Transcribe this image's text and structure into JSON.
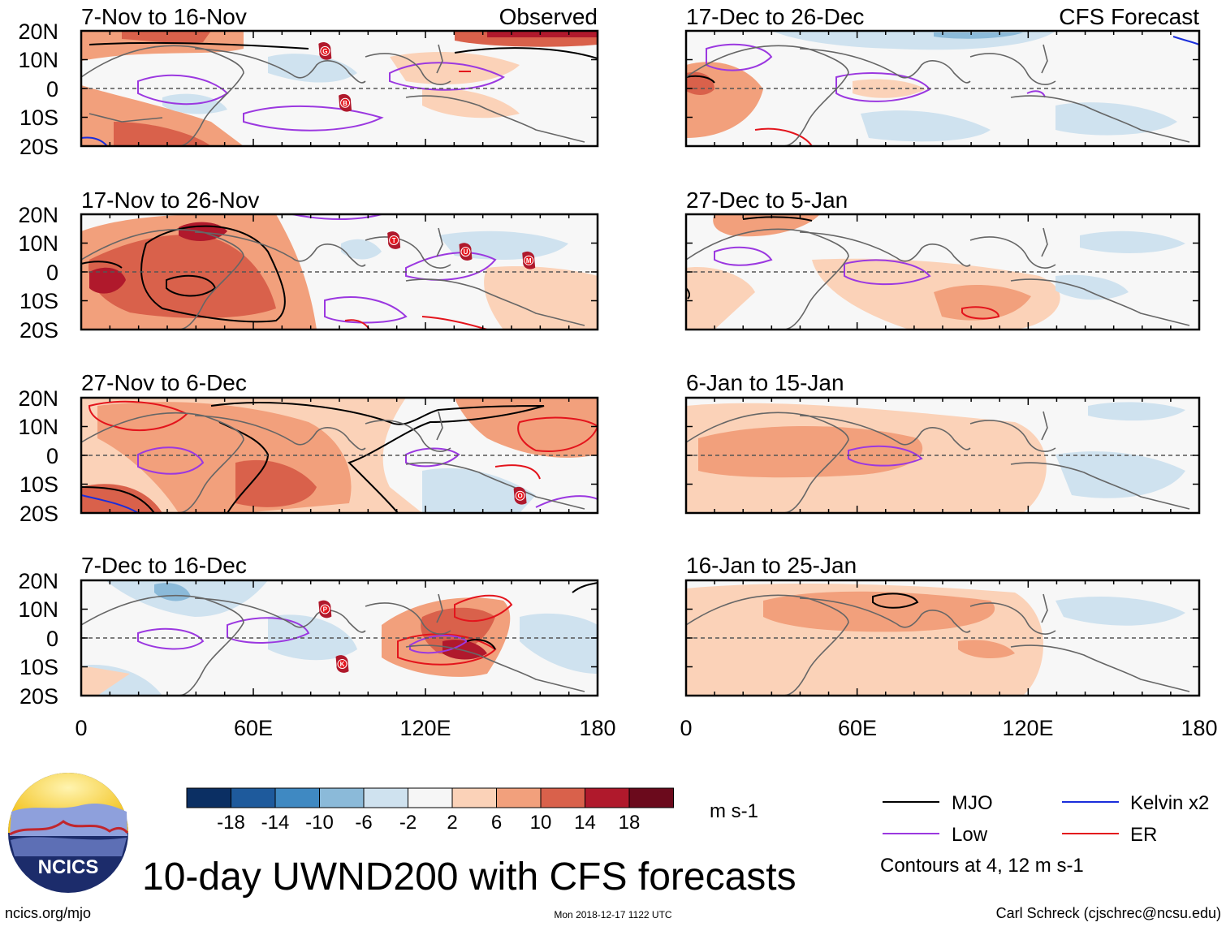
{
  "title": "10-day UWND200 with CFS forecasts",
  "footer": {
    "left": "ncics.org/mjo",
    "center": "Mon 2018-12-17 1122 UTC",
    "right": "Carl Schreck (cjschrec@ncsu.edu)"
  },
  "logo": {
    "text": "NCICS"
  },
  "column_labels": {
    "left": "Observed",
    "right": "CFS Forecast"
  },
  "axes": {
    "lat_ticks": [
      "20N",
      "10N",
      "0",
      "10S",
      "20S"
    ],
    "lon_ticks": [
      "0",
      "60E",
      "120E",
      "180"
    ]
  },
  "panels": {
    "left": [
      {
        "label": "7-Nov to 16-Nov"
      },
      {
        "label": "17-Nov to 26-Nov"
      },
      {
        "label": "27-Nov to 6-Dec"
      },
      {
        "label": "7-Dec to 16-Dec"
      }
    ],
    "right": [
      {
        "label": "17-Dec to 26-Dec"
      },
      {
        "label": "27-Dec to 5-Jan"
      },
      {
        "label": "6-Jan to 15-Jan"
      },
      {
        "label": "16-Jan to 25-Jan"
      }
    ]
  },
  "colorbar": {
    "unit": "m s-1",
    "labels": [
      "-18",
      "-14",
      "-10",
      "-6",
      "-2",
      "2",
      "6",
      "10",
      "14",
      "18"
    ],
    "colors": [
      "#0b2f63",
      "#1e5a9c",
      "#3f89c2",
      "#8bbad9",
      "#cfe2ef",
      "#f6f6f6",
      "#fbd2b8",
      "#f2a07c",
      "#d9614b",
      "#b0192c",
      "#6b0a1c"
    ]
  },
  "legend": {
    "items": [
      {
        "label": "MJO",
        "color": "#000000"
      },
      {
        "label": "Kelvin x2",
        "color": "#1a2edb"
      },
      {
        "label": "Low",
        "color": "#9b38e0"
      },
      {
        "label": "ER",
        "color": "#e3141c"
      }
    ],
    "contours_note": "Contours at 4, 12 m s-1"
  },
  "storm_markers": [
    {
      "panel": "left-0",
      "letter": "G",
      "lon": 85,
      "lat": 13
    },
    {
      "panel": "left-0",
      "letter": "B",
      "lon": 92,
      "lat": -5
    },
    {
      "panel": "left-1",
      "letter": "T",
      "lon": 109,
      "lat": 11
    },
    {
      "panel": "left-1",
      "letter": "U",
      "lon": 134,
      "lat": 7
    },
    {
      "panel": "left-1",
      "letter": "M",
      "lon": 156,
      "lat": 4
    },
    {
      "panel": "left-2",
      "letter": "O",
      "lon": 153,
      "lat": -14
    },
    {
      "panel": "left-3",
      "letter": "P",
      "lon": 85,
      "lat": 10
    },
    {
      "panel": "left-3",
      "letter": "K",
      "lon": 91,
      "lat": -9
    }
  ]
}
